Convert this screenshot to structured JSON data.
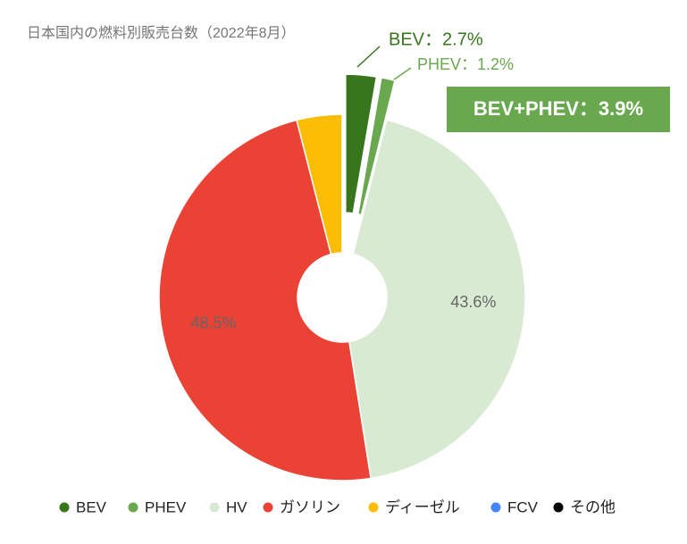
{
  "chart_data": {
    "type": "donut",
    "title": "日本国内の燃料別販売台数（2022年8月）",
    "categories": [
      "BEV",
      "PHEV",
      "HV",
      "ガソリン",
      "ディーゼル",
      "FCV",
      "その他"
    ],
    "values": [
      2.7,
      1.2,
      43.6,
      48.5,
      4.0,
      0,
      0
    ],
    "value_labels": [
      "BEV：2.7%",
      "PHEV：1.2%",
      "43.6%",
      "48.5%",
      null,
      null,
      null
    ],
    "colors": [
      "#38761d",
      "#6aa84f",
      "#d9ead3",
      "#ea4335",
      "#fbbc04",
      "#4285f4",
      "#000000"
    ],
    "exploded": [
      true,
      true,
      false,
      false,
      false,
      false,
      false
    ],
    "annotation": "BEV+PHEV：3.9%",
    "legend": "bottom"
  }
}
